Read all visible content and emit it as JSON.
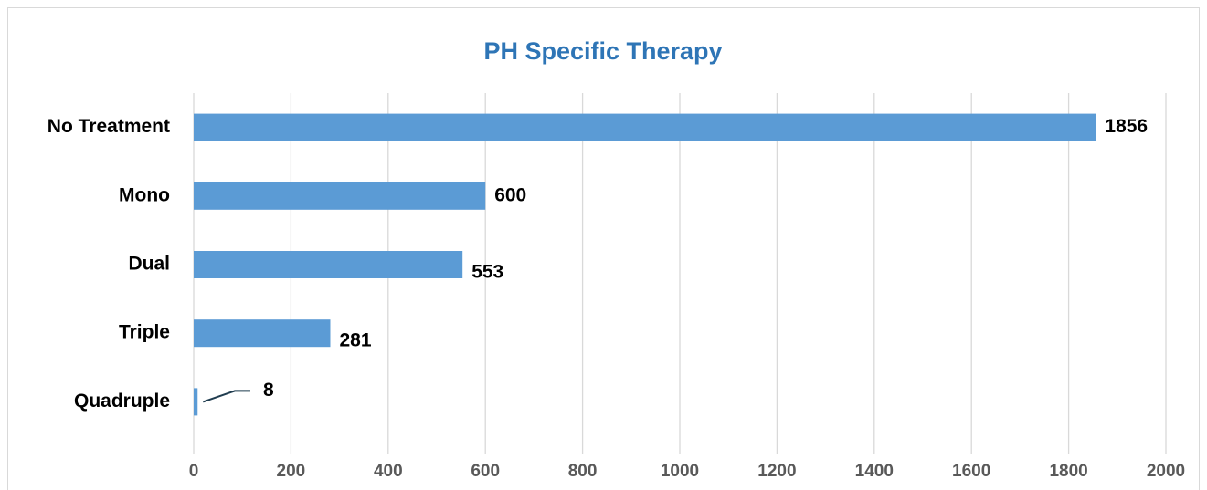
{
  "chart_data": {
    "type": "bar",
    "orientation": "horizontal",
    "title": "PH Specific Therapy",
    "categories": [
      "No Treatment",
      "Mono",
      "Dual",
      "Triple",
      "Quadruple"
    ],
    "values": [
      1856,
      600,
      553,
      281,
      8
    ],
    "color": "#5b9bd5",
    "xlim": [
      0,
      2000
    ],
    "xticks": [
      0,
      200,
      400,
      600,
      800,
      1000,
      1200,
      1400,
      1600,
      1800,
      2000
    ],
    "grid": true
  }
}
